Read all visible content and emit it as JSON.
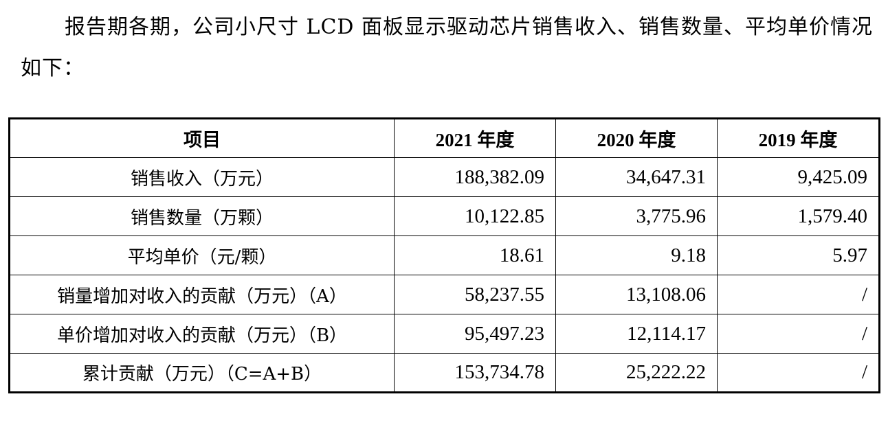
{
  "intro_text": "报告期各期，公司小尺寸 LCD 面板显示驱动芯片销售收入、销售数量、平均单价情况如下：",
  "table": {
    "headers": [
      "项目",
      "2021 年度",
      "2020 年度",
      "2019 年度"
    ],
    "rows": [
      {
        "label": "销售收入（万元）",
        "values": [
          "188,382.09",
          "34,647.31",
          "9,425.09"
        ]
      },
      {
        "label": "销售数量（万颗）",
        "values": [
          "10,122.85",
          "3,775.96",
          "1,579.40"
        ]
      },
      {
        "label": "平均单价（元/颗）",
        "values": [
          "18.61",
          "9.18",
          "5.97"
        ]
      },
      {
        "label": "销量增加对收入的贡献（万元）（A）",
        "values": [
          "58,237.55",
          "13,108.06",
          "/"
        ]
      },
      {
        "label": "单价增加对收入的贡献（万元）（B）",
        "values": [
          "95,497.23",
          "12,114.17",
          "/"
        ]
      },
      {
        "label": "累计贡献（万元）（C=A+B）",
        "values": [
          "153,734.78",
          "25,222.22",
          "/"
        ]
      }
    ]
  }
}
